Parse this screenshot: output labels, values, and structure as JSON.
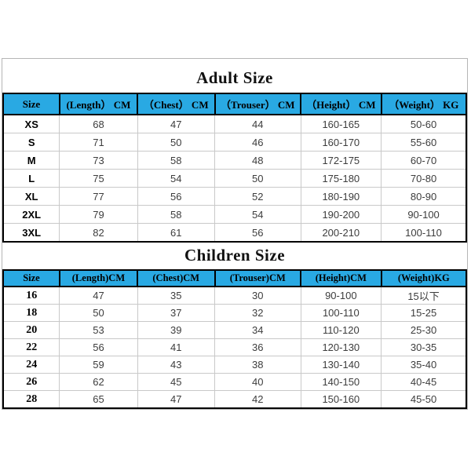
{
  "colors": {
    "header_bg": "#29a9e3",
    "table_border": "#000000",
    "grid_line": "#c9c9c9",
    "value_text": "#3d3d3d"
  },
  "adult": {
    "title": "Adult Size",
    "columns": [
      "Size",
      "(Length） CM",
      "（Chest） CM",
      "（Trouser） CM",
      "（Height） CM",
      "（Weight） KG"
    ],
    "rows": [
      [
        "XS",
        "68",
        "47",
        "44",
        "160-165",
        "50-60"
      ],
      [
        "S",
        "71",
        "50",
        "46",
        "160-170",
        "55-60"
      ],
      [
        "M",
        "73",
        "58",
        "48",
        "172-175",
        "60-70"
      ],
      [
        "L",
        "75",
        "54",
        "50",
        "175-180",
        "70-80"
      ],
      [
        "XL",
        "77",
        "56",
        "52",
        "180-190",
        "80-90"
      ],
      [
        "2XL",
        "79",
        "58",
        "54",
        "190-200",
        "90-100"
      ],
      [
        "3XL",
        "82",
        "61",
        "56",
        "200-210",
        "100-110"
      ]
    ]
  },
  "children": {
    "title": "Children Size",
    "columns": [
      "Size",
      "(Length)CM",
      "(Chest)CM",
      "(Trouser)CM",
      "(Height)CM",
      "(Weight)KG"
    ],
    "rows": [
      [
        "16",
        "47",
        "35",
        "30",
        "90-100",
        "15以下"
      ],
      [
        "18",
        "50",
        "37",
        "32",
        "100-110",
        "15-25"
      ],
      [
        "20",
        "53",
        "39",
        "34",
        "110-120",
        "25-30"
      ],
      [
        "22",
        "56",
        "41",
        "36",
        "120-130",
        "30-35"
      ],
      [
        "24",
        "59",
        "43",
        "38",
        "130-140",
        "35-40"
      ],
      [
        "26",
        "62",
        "45",
        "40",
        "140-150",
        "40-45"
      ],
      [
        "28",
        "65",
        "47",
        "42",
        "150-160",
        "45-50"
      ]
    ]
  }
}
